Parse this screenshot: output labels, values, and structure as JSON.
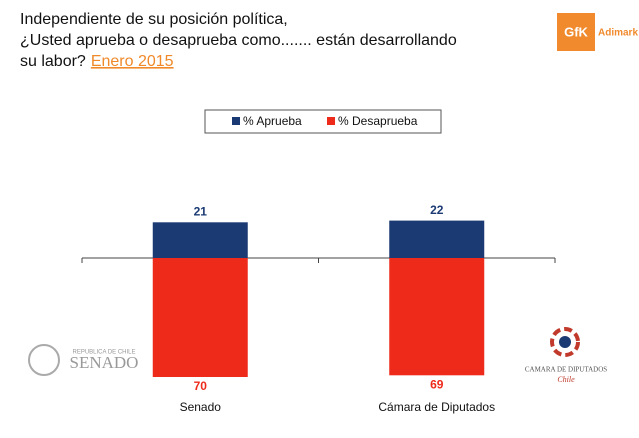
{
  "chart_data": {
    "type": "diverging_bar",
    "title": [
      "Independiente de su posición política,",
      "¿Usted aprueba o desaprueba como....... están desarrollando",
      "su labor?"
    ],
    "subtitle": "Enero 2015",
    "categories": [
      "Senado",
      "Cámara de Diputados"
    ],
    "series": [
      {
        "name": "% Aprueba",
        "color": "#1b3a73",
        "direction": "up",
        "values": [
          21,
          22
        ]
      },
      {
        "name": "% Desaprueba",
        "color": "#ee2a1b",
        "direction": "down",
        "values": [
          70,
          69
        ]
      }
    ]
  },
  "logos": {
    "gfk": {
      "mark": "GfK",
      "name": "Adimark"
    },
    "senado": {
      "top": "REPUBLICA DE CHILE",
      "name": "SENADO"
    },
    "camara": {
      "name": "CAMARA DE DIPUTADOS",
      "country": "Chile"
    }
  }
}
